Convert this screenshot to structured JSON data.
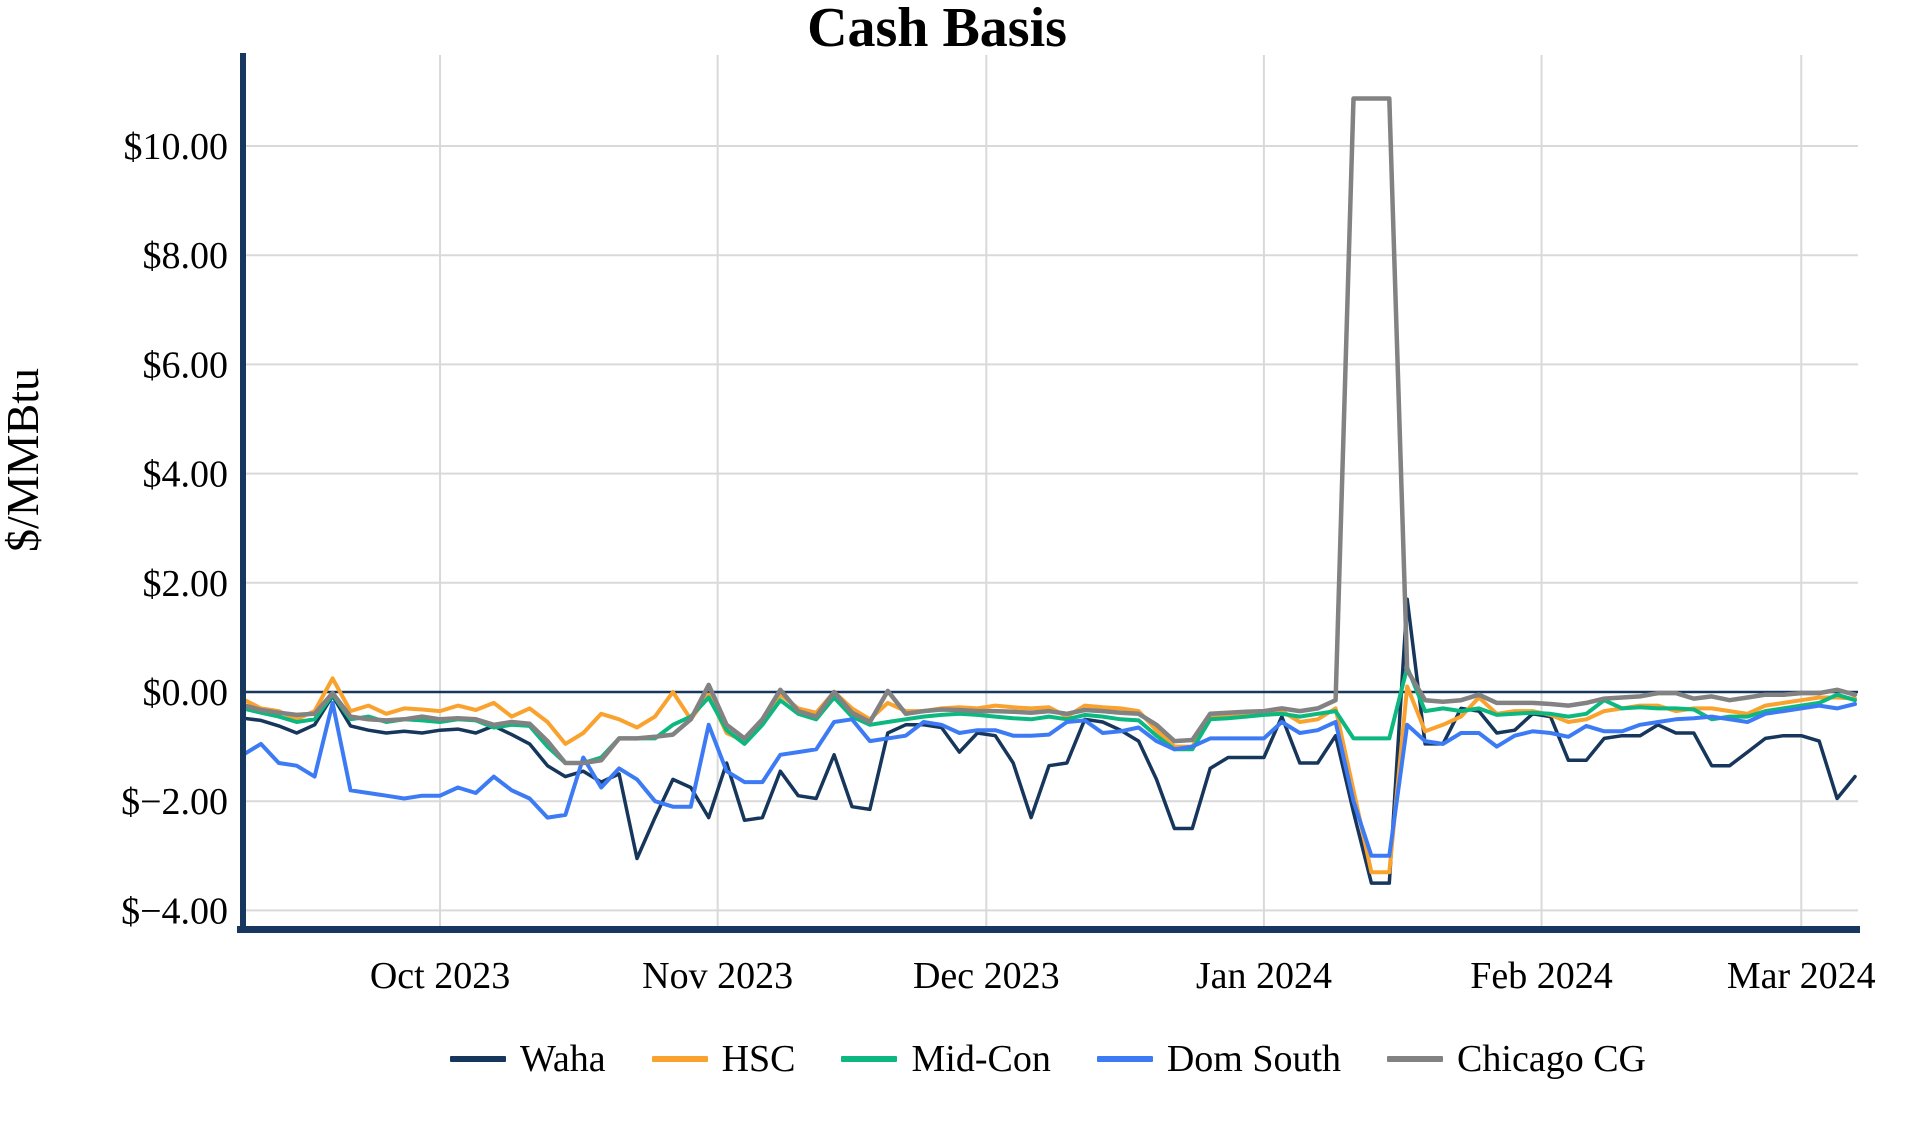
{
  "chart_data": {
    "type": "line",
    "title": "Cash Basis",
    "ylabel": "$/MMBtu",
    "x_axis": {
      "start_date": "2023-09-09",
      "end_date": "2024-03-07",
      "sample_interval_days": 2,
      "total_days": 180
    },
    "x_ticks": [
      {
        "label": "Oct 2023",
        "day": 22
      },
      {
        "label": "Nov 2023",
        "day": 53
      },
      {
        "label": "Dec 2023",
        "day": 83
      },
      {
        "label": "Jan 2024",
        "day": 114
      },
      {
        "label": "Feb 2024",
        "day": 145
      },
      {
        "label": "Mar 2024",
        "day": 174
      }
    ],
    "y_ticks": [
      {
        "label": "$10.00",
        "value": 10
      },
      {
        "label": "$8.00",
        "value": 8
      },
      {
        "label": "$6.00",
        "value": 6
      },
      {
        "label": "$4.00",
        "value": 4
      },
      {
        "label": "$2.00",
        "value": 2
      },
      {
        "label": "$0.00",
        "value": 0
      },
      {
        "label": "$−2.00",
        "value": -2
      },
      {
        "label": "$−4.00",
        "value": -4
      }
    ],
    "ylim": [
      -4.35,
      11.7
    ],
    "grid": true,
    "legend_position": "bottom",
    "colors": {
      "axis": "#17375e",
      "zero_line": "#17375e",
      "gridline": "#d9d9d9",
      "background": "#ffffff"
    },
    "series": [
      {
        "name": "Waha",
        "color": "#16365c",
        "width": 3.5,
        "values": [
          -0.48,
          -0.52,
          -0.62,
          -0.75,
          -0.6,
          -0.07,
          -0.62,
          -0.7,
          -0.75,
          -0.72,
          -0.75,
          -0.7,
          -0.68,
          -0.75,
          -0.62,
          -0.78,
          -0.95,
          -1.35,
          -1.55,
          -1.45,
          -1.65,
          -1.5,
          -3.05,
          -2.3,
          -1.6,
          -1.75,
          -2.3,
          -1.3,
          -2.35,
          -2.3,
          -1.45,
          -1.9,
          -1.95,
          -1.15,
          -2.1,
          -2.15,
          -0.75,
          -0.6,
          -0.6,
          -0.65,
          -1.1,
          -0.75,
          -0.8,
          -1.3,
          -2.3,
          -1.35,
          -1.3,
          -0.5,
          -0.55,
          -0.7,
          -0.9,
          -1.6,
          -2.5,
          -2.5,
          -1.4,
          -1.2,
          -1.2,
          -1.2,
          -0.45,
          -1.3,
          -1.3,
          -0.8,
          -2.2,
          -3.5,
          -3.5,
          1.7,
          -0.95,
          -0.95,
          -0.3,
          -0.35,
          -0.75,
          -0.7,
          -0.4,
          -0.45,
          -1.25,
          -1.25,
          -0.85,
          -0.8,
          -0.8,
          -0.6,
          -0.75,
          -0.75,
          -1.35,
          -1.35,
          -1.1,
          -0.85,
          -0.8,
          -0.8,
          -0.9,
          -1.95,
          -1.55
        ]
      },
      {
        "name": "HSC",
        "color": "#faa22e",
        "width": 4,
        "values": [
          -0.13,
          -0.3,
          -0.35,
          -0.5,
          -0.35,
          0.25,
          -0.35,
          -0.25,
          -0.4,
          -0.3,
          -0.32,
          -0.35,
          -0.25,
          -0.33,
          -0.2,
          -0.45,
          -0.3,
          -0.55,
          -0.95,
          -0.75,
          -0.4,
          -0.5,
          -0.65,
          -0.45,
          0.0,
          -0.5,
          -0.05,
          -0.75,
          -0.9,
          -0.5,
          -0.05,
          -0.3,
          -0.38,
          0.0,
          -0.3,
          -0.5,
          -0.2,
          -0.35,
          -0.35,
          -0.3,
          -0.28,
          -0.3,
          -0.25,
          -0.28,
          -0.3,
          -0.28,
          -0.45,
          -0.25,
          -0.28,
          -0.3,
          -0.35,
          -0.7,
          -1.0,
          -1.0,
          -0.45,
          -0.45,
          -0.4,
          -0.35,
          -0.35,
          -0.55,
          -0.5,
          -0.3,
          -1.8,
          -3.3,
          -3.3,
          0.1,
          -0.72,
          -0.6,
          -0.45,
          -0.1,
          -0.4,
          -0.35,
          -0.35,
          -0.42,
          -0.55,
          -0.5,
          -0.35,
          -0.3,
          -0.25,
          -0.25,
          -0.35,
          -0.3,
          -0.3,
          -0.35,
          -0.4,
          -0.25,
          -0.2,
          -0.15,
          -0.1,
          -0.1,
          -0.12
        ]
      },
      {
        "name": "Mid-Con",
        "color": "#0cb87f",
        "width": 4,
        "values": [
          -0.3,
          -0.38,
          -0.45,
          -0.55,
          -0.5,
          -0.05,
          -0.5,
          -0.45,
          -0.55,
          -0.5,
          -0.52,
          -0.55,
          -0.5,
          -0.52,
          -0.65,
          -0.6,
          -0.62,
          -1.0,
          -1.3,
          -1.3,
          -1.2,
          -0.85,
          -0.85,
          -0.85,
          -0.6,
          -0.45,
          -0.1,
          -0.7,
          -0.95,
          -0.6,
          -0.15,
          -0.4,
          -0.5,
          -0.1,
          -0.45,
          -0.6,
          -0.55,
          -0.5,
          -0.45,
          -0.42,
          -0.4,
          -0.42,
          -0.45,
          -0.48,
          -0.5,
          -0.45,
          -0.5,
          -0.42,
          -0.45,
          -0.5,
          -0.52,
          -0.8,
          -1.05,
          -1.05,
          -0.5,
          -0.48,
          -0.45,
          -0.42,
          -0.4,
          -0.45,
          -0.4,
          -0.35,
          -0.85,
          -0.85,
          -0.85,
          0.45,
          -0.35,
          -0.3,
          -0.35,
          -0.3,
          -0.42,
          -0.4,
          -0.38,
          -0.4,
          -0.45,
          -0.4,
          -0.15,
          -0.3,
          -0.28,
          -0.3,
          -0.3,
          -0.32,
          -0.5,
          -0.45,
          -0.45,
          -0.35,
          -0.3,
          -0.25,
          -0.2,
          -0.05,
          -0.15
        ]
      },
      {
        "name": "Dom South",
        "color": "#3d7bf5",
        "width": 4,
        "values": [
          -1.15,
          -0.95,
          -1.3,
          -1.35,
          -1.55,
          -0.2,
          -1.8,
          -1.85,
          -1.9,
          -1.95,
          -1.9,
          -1.9,
          -1.75,
          -1.85,
          -1.55,
          -1.8,
          -1.95,
          -2.3,
          -2.25,
          -1.2,
          -1.75,
          -1.4,
          -1.6,
          -2.0,
          -2.1,
          -2.1,
          -0.6,
          -1.45,
          -1.65,
          -1.65,
          -1.15,
          -1.1,
          -1.05,
          -0.55,
          -0.5,
          -0.9,
          -0.85,
          -0.8,
          -0.55,
          -0.6,
          -0.75,
          -0.7,
          -0.7,
          -0.8,
          -0.8,
          -0.78,
          -0.55,
          -0.52,
          -0.75,
          -0.72,
          -0.65,
          -0.9,
          -1.05,
          -1.0,
          -0.85,
          -0.85,
          -0.85,
          -0.85,
          -0.55,
          -0.75,
          -0.7,
          -0.55,
          -2.0,
          -3.0,
          -3.0,
          -0.6,
          -0.9,
          -0.95,
          -0.75,
          -0.75,
          -1.0,
          -0.8,
          -0.72,
          -0.75,
          -0.82,
          -0.62,
          -0.72,
          -0.72,
          -0.6,
          -0.55,
          -0.5,
          -0.48,
          -0.45,
          -0.5,
          -0.55,
          -0.4,
          -0.35,
          -0.3,
          -0.25,
          -0.3,
          -0.22
        ]
      },
      {
        "name": "Chicago CG",
        "color": "#828282",
        "width": 4.5,
        "values": [
          -0.24,
          -0.33,
          -0.38,
          -0.42,
          -0.4,
          -0.02,
          -0.45,
          -0.5,
          -0.52,
          -0.5,
          -0.45,
          -0.5,
          -0.48,
          -0.5,
          -0.6,
          -0.55,
          -0.58,
          -0.9,
          -1.3,
          -1.3,
          -1.25,
          -0.85,
          -0.85,
          -0.82,
          -0.78,
          -0.5,
          0.13,
          -0.6,
          -0.85,
          -0.5,
          0.04,
          -0.35,
          -0.45,
          0.0,
          -0.38,
          -0.55,
          0.02,
          -0.4,
          -0.35,
          -0.32,
          -0.33,
          -0.35,
          -0.35,
          -0.36,
          -0.38,
          -0.35,
          -0.4,
          -0.33,
          -0.35,
          -0.38,
          -0.4,
          -0.6,
          -0.9,
          -0.88,
          -0.4,
          -0.38,
          -0.36,
          -0.35,
          -0.3,
          -0.35,
          -0.3,
          -0.15,
          10.87,
          10.87,
          10.87,
          0.4,
          -0.15,
          -0.18,
          -0.15,
          -0.05,
          -0.2,
          -0.2,
          -0.2,
          -0.22,
          -0.25,
          -0.2,
          -0.12,
          -0.1,
          -0.08,
          -0.02,
          -0.02,
          -0.12,
          -0.08,
          -0.15,
          -0.1,
          -0.05,
          -0.05,
          -0.02,
          -0.02,
          0.04,
          -0.05
        ]
      }
    ]
  }
}
